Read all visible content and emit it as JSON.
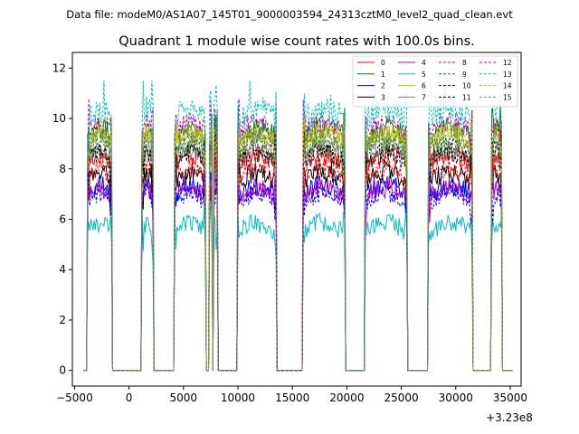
{
  "chart_data": {
    "type": "line",
    "suptitle": "Data file: modeM0/AS1A07_145T01_9000003594_24313cztM0_level2_quad_clean.evt",
    "title": "Quadrant 1 module wise count rates with 100.0s bins.",
    "xlabel": "",
    "ylabel": "",
    "x_offset_label": "+3.23e8",
    "xlim": [
      -5200,
      36000
    ],
    "ylim": [
      -0.62,
      12.62
    ],
    "x_ticks": [
      -5000,
      0,
      5000,
      10000,
      15000,
      20000,
      25000,
      30000,
      35000
    ],
    "x_tick_labels": [
      "−5000",
      "0",
      "5000",
      "10000",
      "15000",
      "20000",
      "25000",
      "30000",
      "35000"
    ],
    "y_ticks": [
      0,
      2,
      4,
      6,
      8,
      10,
      12
    ],
    "y_tick_labels": [
      "0",
      "2",
      "4",
      "6",
      "8",
      "10",
      "12"
    ],
    "grid": false,
    "legend_position": "top-right",
    "bin_seconds": 100,
    "on_intervals": [
      [
        -3800,
        -1600
      ],
      [
        1200,
        2200
      ],
      [
        4200,
        7000
      ],
      [
        7400,
        7600
      ],
      [
        7800,
        8100
      ],
      [
        10000,
        13500
      ],
      [
        16000,
        19800
      ],
      [
        21700,
        25500
      ],
      [
        27500,
        31500
      ],
      [
        33300,
        34200
      ]
    ],
    "series": [
      {
        "name": "0",
        "color": "#ff0000",
        "dash": "solid",
        "mean": 8.2
      },
      {
        "name": "1",
        "color": "#008000",
        "dash": "solid",
        "mean": 9.3
      },
      {
        "name": "2",
        "color": "#0000ff",
        "dash": "solid",
        "mean": 7.0
      },
      {
        "name": "3",
        "color": "#000000",
        "dash": "solid",
        "mean": 7.5
      },
      {
        "name": "4",
        "color": "#bf00bf",
        "dash": "solid",
        "mean": 6.9
      },
      {
        "name": "5",
        "color": "#00bfbf",
        "dash": "solid",
        "mean": 5.5
      },
      {
        "name": "6",
        "color": "#bfbf00",
        "dash": "solid",
        "mean": 9.0
      },
      {
        "name": "7",
        "color": "#808080",
        "dash": "solid",
        "mean": 8.4
      },
      {
        "name": "8",
        "color": "#ff0000",
        "dash": "dashed",
        "mean": 7.7
      },
      {
        "name": "9",
        "color": "#008000",
        "dash": "dashed",
        "mean": 8.7
      },
      {
        "name": "10",
        "color": "#0000ff",
        "dash": "dashed",
        "mean": 6.7
      },
      {
        "name": "11",
        "color": "#000000",
        "dash": "dashed",
        "mean": 8.3
      },
      {
        "name": "12",
        "color": "#bf00bf",
        "dash": "dashed",
        "mean": 9.5
      },
      {
        "name": "13",
        "color": "#00bfbf",
        "dash": "dashed",
        "mean": 10.0
      },
      {
        "name": "14",
        "color": "#bfbf00",
        "dash": "dashed",
        "mean": 9.1
      },
      {
        "name": "15",
        "color": "#808080",
        "dash": "dashed",
        "mean": 8.9
      }
    ]
  }
}
